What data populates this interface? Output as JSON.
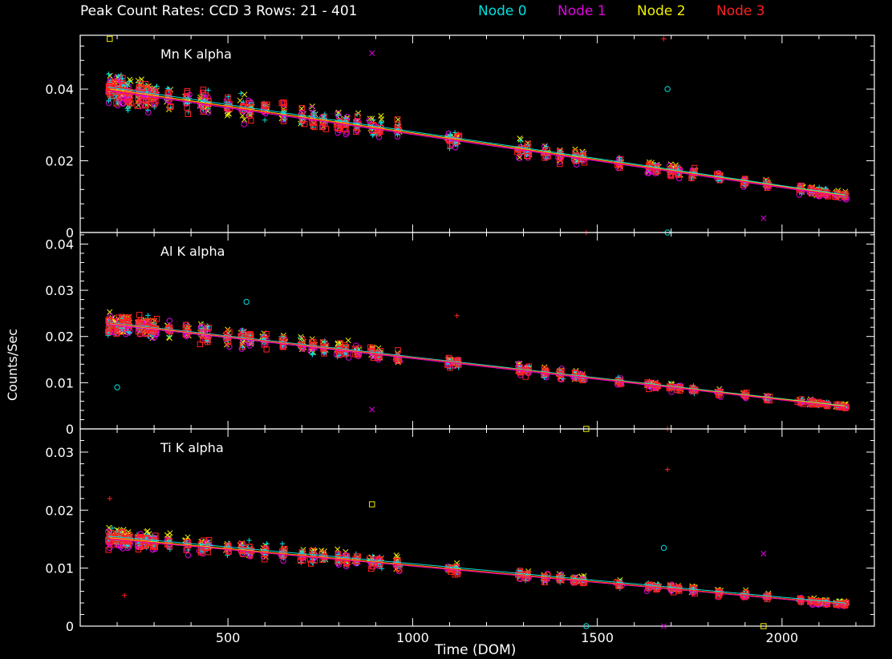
{
  "header": {
    "title": "Peak Count Rates: CCD 3 Rows: 21 - 401",
    "legend": [
      {
        "label": "Node 0",
        "color": "#00e0e0"
      },
      {
        "label": "Node 1",
        "color": "#e000e0"
      },
      {
        "label": "Node 2",
        "color": "#f0f000"
      },
      {
        "label": "Node 3",
        "color": "#ff2020"
      }
    ]
  },
  "axes": {
    "xlabel": "Time (DOM)",
    "ylabel": "Counts/Sec"
  },
  "chart_data": [
    {
      "type": "scatter",
      "title": "Mn K alpha",
      "xlim": [
        100,
        2250
      ],
      "ylim": [
        0,
        0.055
      ],
      "xticks": [
        500,
        1000,
        1500,
        2000
      ],
      "yticks": [
        0,
        0.02,
        0.04
      ],
      "yticklabels": [
        "0",
        "0.02",
        "0.04"
      ],
      "clusters": [
        180,
        200,
        215,
        230,
        260,
        280,
        300,
        340,
        390,
        430,
        445,
        500,
        540,
        560,
        600,
        650,
        700,
        730,
        760,
        800,
        820,
        850,
        890,
        910,
        960,
        1100,
        1120,
        1290,
        1310,
        1360,
        1400,
        1440,
        1460,
        1560,
        1640,
        1660,
        1700,
        1720,
        1760,
        1830,
        1900,
        1960,
        2050,
        2080,
        2100,
        2120,
        2150,
        2170
      ],
      "series": [
        {
          "name": "Node 0",
          "marker": "plus",
          "trend": [
            [
              180,
              0.0405
            ],
            [
              2170,
              0.0105
            ]
          ]
        },
        {
          "name": "Node 1",
          "marker": "circle",
          "trend": [
            [
              180,
              0.0395
            ],
            [
              2170,
              0.01
            ]
          ]
        },
        {
          "name": "Node 2",
          "marker": "cross",
          "trend": [
            [
              180,
              0.04
            ],
            [
              2170,
              0.0103
            ]
          ]
        },
        {
          "name": "Node 3",
          "marker": "square",
          "trend": [
            [
              180,
              0.0398
            ],
            [
              2170,
              0.0102
            ]
          ]
        }
      ],
      "outliers": [
        [
          1680,
          0.054
        ],
        [
          1690,
          0.04
        ],
        [
          890,
          0.05
        ],
        [
          180,
          0.054
        ],
        [
          1470,
          0.0
        ],
        [
          1690,
          0.0
        ],
        [
          1950,
          0.004
        ]
      ]
    },
    {
      "type": "scatter",
      "title": "Al K alpha",
      "xlim": [
        100,
        2250
      ],
      "ylim": [
        0,
        0.0425
      ],
      "xticks": [
        500,
        1000,
        1500,
        2000
      ],
      "yticks": [
        0,
        0.01,
        0.02,
        0.03,
        0.04
      ],
      "yticklabels": [
        "0",
        "0.01",
        "0.02",
        "0.03",
        "0.04"
      ],
      "clusters": [
        180,
        200,
        215,
        230,
        260,
        280,
        300,
        340,
        390,
        430,
        445,
        500,
        540,
        560,
        600,
        650,
        700,
        730,
        760,
        800,
        820,
        850,
        890,
        910,
        960,
        1100,
        1120,
        1290,
        1310,
        1360,
        1400,
        1440,
        1460,
        1560,
        1640,
        1660,
        1700,
        1720,
        1760,
        1830,
        1900,
        1960,
        2050,
        2080,
        2100,
        2120,
        2150,
        2170
      ],
      "series": [
        {
          "name": "Node 0",
          "marker": "plus",
          "trend": [
            [
              180,
              0.023
            ],
            [
              2170,
              0.005
            ]
          ]
        },
        {
          "name": "Node 1",
          "marker": "circle",
          "trend": [
            [
              180,
              0.0226
            ],
            [
              2170,
              0.0047
            ]
          ]
        },
        {
          "name": "Node 2",
          "marker": "cross",
          "trend": [
            [
              180,
              0.0228
            ],
            [
              2170,
              0.0049
            ]
          ]
        },
        {
          "name": "Node 3",
          "marker": "square",
          "trend": [
            [
              180,
              0.0229
            ],
            [
              2170,
              0.0048
            ]
          ]
        }
      ],
      "outliers": [
        [
          1120,
          0.0245
        ],
        [
          550,
          0.0275
        ],
        [
          890,
          0.0042
        ],
        [
          1470,
          0.0
        ],
        [
          1690,
          0.0
        ],
        [
          200,
          0.009
        ]
      ]
    },
    {
      "type": "scatter",
      "title": "Ti K alpha",
      "xlim": [
        100,
        2250
      ],
      "ylim": [
        0,
        0.034
      ],
      "xticks": [
        500,
        1000,
        1500,
        2000
      ],
      "yticks": [
        0,
        0.01,
        0.02,
        0.03
      ],
      "yticklabels": [
        "0",
        "0.01",
        "0.02",
        "0.03"
      ],
      "clusters": [
        180,
        200,
        215,
        230,
        260,
        280,
        300,
        340,
        390,
        430,
        445,
        500,
        540,
        560,
        600,
        650,
        700,
        730,
        760,
        800,
        820,
        850,
        890,
        910,
        960,
        1100,
        1120,
        1290,
        1310,
        1360,
        1400,
        1440,
        1460,
        1560,
        1640,
        1660,
        1700,
        1720,
        1760,
        1830,
        1900,
        1960,
        2050,
        2080,
        2100,
        2120,
        2150,
        2170
      ],
      "series": [
        {
          "name": "Node 0",
          "marker": "plus",
          "trend": [
            [
              180,
              0.0155
            ],
            [
              2170,
              0.004
            ]
          ]
        },
        {
          "name": "Node 1",
          "marker": "circle",
          "trend": [
            [
              180,
              0.015
            ],
            [
              2170,
              0.0037
            ]
          ]
        },
        {
          "name": "Node 2",
          "marker": "cross",
          "trend": [
            [
              180,
              0.0152
            ],
            [
              2170,
              0.0038
            ]
          ]
        },
        {
          "name": "Node 3",
          "marker": "square",
          "trend": [
            [
              180,
              0.0151
            ],
            [
              2170,
              0.0038
            ]
          ]
        }
      ],
      "outliers": [
        [
          1690,
          0.027
        ],
        [
          1680,
          0.0135
        ],
        [
          1950,
          0.0125
        ],
        [
          890,
          0.021
        ],
        [
          180,
          0.022
        ],
        [
          1470,
          0.0
        ],
        [
          1680,
          0.0
        ],
        [
          1950,
          0.0
        ],
        [
          220,
          0.0053
        ]
      ]
    }
  ]
}
